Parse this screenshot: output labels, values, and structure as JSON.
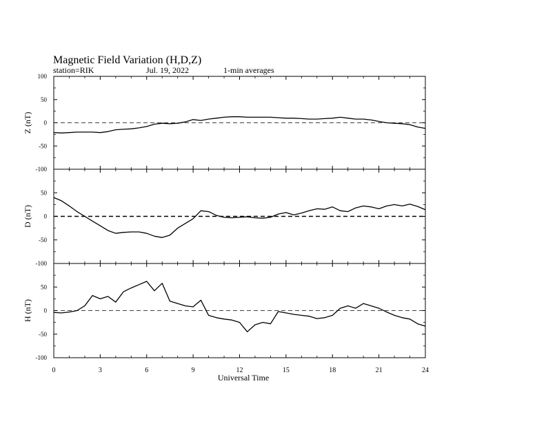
{
  "header": {
    "title": "Magnetic Field Variation (H,D,Z)",
    "station": "station=RIK",
    "date": "Jul. 19, 2022",
    "averaging": "1-min averages"
  },
  "chart_data": [
    {
      "type": "line",
      "panel": "Z",
      "ylabel": "Z (nT)",
      "ylim": [
        -100,
        100
      ],
      "yticks": [
        -100,
        -50,
        0,
        50,
        100
      ],
      "xlim": [
        0,
        24
      ],
      "xticks": [
        0,
        3,
        6,
        9,
        12,
        15,
        18,
        21,
        24
      ],
      "zero_line": "dashed",
      "x": [
        0,
        0.5,
        1,
        1.5,
        2,
        2.5,
        3,
        3.5,
        4,
        4.5,
        5,
        5.5,
        6,
        6.5,
        7,
        7.5,
        8,
        8.5,
        9,
        9.5,
        10,
        10.5,
        11,
        11.5,
        12,
        12.5,
        13,
        13.5,
        14,
        14.5,
        15,
        15.5,
        16,
        16.5,
        17,
        17.5,
        18,
        18.5,
        19,
        19.5,
        20,
        20.5,
        21,
        21.5,
        22,
        22.5,
        23,
        23.5,
        24
      ],
      "values": [
        -21,
        -22,
        -21,
        -20,
        -20,
        -20,
        -21,
        -19,
        -15,
        -14,
        -13,
        -11,
        -8,
        -3,
        -1,
        -2,
        -1,
        2,
        7,
        5,
        8,
        10,
        12,
        13,
        13,
        12,
        12,
        12,
        12,
        11,
        10,
        10,
        9,
        8,
        8,
        9,
        10,
        12,
        10,
        8,
        8,
        6,
        3,
        0,
        -1,
        -2,
        -4,
        -9,
        -12
      ]
    },
    {
      "type": "line",
      "panel": "D",
      "ylabel": "D (nT)",
      "ylim": [
        -100,
        100
      ],
      "yticks": [
        -100,
        -50,
        0,
        50,
        100
      ],
      "xlim": [
        0,
        24
      ],
      "xticks": [
        0,
        3,
        6,
        9,
        12,
        15,
        18,
        21,
        24
      ],
      "zero_line": "dashed",
      "x": [
        0,
        0.5,
        1,
        1.5,
        2,
        2.5,
        3,
        3.5,
        4,
        4.5,
        5,
        5.5,
        6,
        6.5,
        7,
        7.5,
        8,
        8.5,
        9,
        9.5,
        10,
        10.5,
        11,
        11.5,
        12,
        12.5,
        13,
        13.5,
        14,
        14.5,
        15,
        15.5,
        16,
        16.5,
        17,
        17.5,
        18,
        18.5,
        19,
        19.5,
        20,
        20.5,
        21,
        21.5,
        22,
        22.5,
        23,
        23.5,
        24
      ],
      "values": [
        40,
        33,
        22,
        10,
        0,
        -10,
        -20,
        -30,
        -36,
        -34,
        -33,
        -33,
        -36,
        -42,
        -45,
        -40,
        -25,
        -15,
        -5,
        12,
        10,
        2,
        -2,
        -3,
        -2,
        -1,
        -3,
        -4,
        -2,
        5,
        8,
        3,
        7,
        12,
        16,
        15,
        20,
        12,
        10,
        18,
        22,
        20,
        16,
        22,
        25,
        22,
        26,
        21,
        14
      ]
    },
    {
      "type": "line",
      "panel": "H",
      "ylabel": "H (nT)",
      "ylim": [
        -100,
        100
      ],
      "yticks": [
        -100,
        -50,
        0,
        50,
        100
      ],
      "xlim": [
        0,
        24
      ],
      "xticks": [
        0,
        3,
        6,
        9,
        12,
        15,
        18,
        21,
        24
      ],
      "zero_line": "dashed",
      "x": [
        0,
        0.5,
        1,
        1.5,
        2,
        2.5,
        3,
        3.5,
        4,
        4.5,
        5,
        5.5,
        6,
        6.5,
        7,
        7.5,
        8,
        8.5,
        9,
        9.5,
        10,
        10.5,
        11,
        11.5,
        12,
        12.5,
        13,
        13.5,
        14,
        14.5,
        15,
        15.5,
        16,
        16.5,
        17,
        17.5,
        18,
        18.5,
        19,
        19.5,
        20,
        20.5,
        21,
        21.5,
        22,
        22.5,
        23,
        23.5,
        24
      ],
      "values": [
        -4,
        -5,
        -3,
        0,
        10,
        32,
        25,
        30,
        18,
        40,
        48,
        55,
        62,
        42,
        58,
        20,
        15,
        10,
        8,
        22,
        -10,
        -15,
        -18,
        -20,
        -25,
        -45,
        -30,
        -25,
        -28,
        -2,
        -5,
        -8,
        -10,
        -12,
        -17,
        -15,
        -10,
        5,
        10,
        5,
        15,
        10,
        5,
        -3,
        -10,
        -15,
        -18,
        -28,
        -33
      ]
    }
  ],
  "x_axis": {
    "label": "Universal Time"
  }
}
